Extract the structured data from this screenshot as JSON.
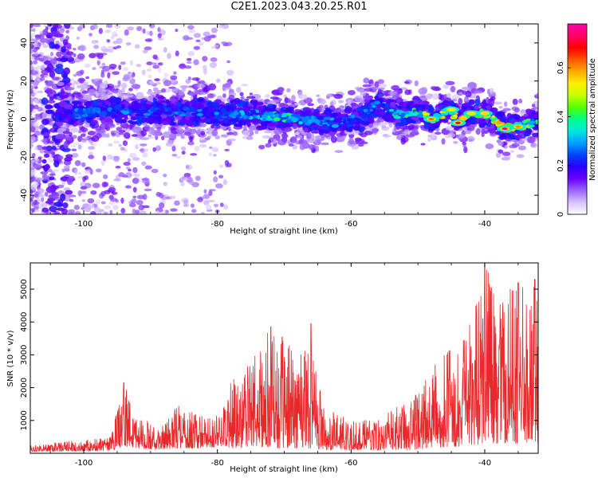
{
  "figure": {
    "title": "C2E1.2023.043.20.25.R01"
  },
  "chart_data": [
    {
      "type": "heatmap",
      "xlabel": "Height of straight line (km)",
      "ylabel": "Frequency (Hz)",
      "xlim": [
        -108,
        -32
      ],
      "ylim": [
        -50,
        50
      ],
      "xticks": [
        -100,
        -80,
        -60,
        -40
      ],
      "yticks": [
        -40,
        -20,
        0,
        20,
        40
      ],
      "colorbar": {
        "label": "Normalized spectral amplitude",
        "range": [
          0,
          0.78
        ],
        "ticks": [
          0,
          0.2,
          0.4,
          0.6
        ],
        "colormap": [
          "#ffffff",
          "#d6c2ff",
          "#9a66ff",
          "#6a00ff",
          "#2b00ff",
          "#0044ff",
          "#00a0ff",
          "#00e8e0",
          "#00ff88",
          "#55ff00",
          "#c8ff00",
          "#ffee00",
          "#ffaa00",
          "#ff5500",
          "#ff0000",
          "#ff0066",
          "#ff00aa"
        ]
      },
      "ridge": [
        {
          "x": -104,
          "f": 3,
          "a": 0.18
        },
        {
          "x": -101,
          "f": 3,
          "a": 0.3
        },
        {
          "x": -98,
          "f": 4,
          "a": 0.32
        },
        {
          "x": -95,
          "f": 5,
          "a": 0.3
        },
        {
          "x": -92,
          "f": 4,
          "a": 0.32
        },
        {
          "x": -89,
          "f": 4,
          "a": 0.28
        },
        {
          "x": -86,
          "f": 4,
          "a": 0.3
        },
        {
          "x": -83,
          "f": 4,
          "a": 0.3
        },
        {
          "x": -80,
          "f": 3,
          "a": 0.3
        },
        {
          "x": -77,
          "f": 3,
          "a": 0.32
        },
        {
          "x": -74,
          "f": 2,
          "a": 0.38
        },
        {
          "x": -71,
          "f": 1,
          "a": 0.42
        },
        {
          "x": -68,
          "f": 0,
          "a": 0.4
        },
        {
          "x": -65,
          "f": -1,
          "a": 0.36
        },
        {
          "x": -62,
          "f": -2,
          "a": 0.3
        },
        {
          "x": -59,
          "f": 0,
          "a": 0.3
        },
        {
          "x": -56,
          "f": 8,
          "a": 0.32
        },
        {
          "x": -53,
          "f": 2,
          "a": 0.42
        },
        {
          "x": -50,
          "f": 4,
          "a": 0.45
        },
        {
          "x": -48,
          "f": 0,
          "a": 0.62
        },
        {
          "x": -45,
          "f": 5,
          "a": 0.5
        },
        {
          "x": -44,
          "f": -2,
          "a": 0.7
        },
        {
          "x": -42,
          "f": 3,
          "a": 0.5
        },
        {
          "x": -40,
          "f": 3,
          "a": 0.55
        },
        {
          "x": -37,
          "f": -5,
          "a": 0.75
        },
        {
          "x": -35,
          "f": -4,
          "a": 0.6
        },
        {
          "x": -33,
          "f": -2,
          "a": 0.45
        }
      ]
    },
    {
      "type": "line",
      "xlabel": "Height of straight line (km)",
      "ylabel": "SNR (10 * v/v)",
      "xlim": [
        -108,
        -32
      ],
      "ylim": [
        0,
        5800
      ],
      "xticks": [
        -100,
        -80,
        -60,
        -40
      ],
      "yticks": [
        1000,
        2000,
        3000,
        4000,
        5000
      ],
      "color": "#e8282b",
      "envelope": [
        {
          "x": -108,
          "lo": 50,
          "hi": 250
        },
        {
          "x": -100,
          "lo": 60,
          "hi": 420
        },
        {
          "x": -96,
          "lo": 80,
          "hi": 500
        },
        {
          "x": -94,
          "lo": 200,
          "hi": 2150
        },
        {
          "x": -92,
          "lo": 150,
          "hi": 1300
        },
        {
          "x": -89,
          "lo": 100,
          "hi": 700
        },
        {
          "x": -86,
          "lo": 150,
          "hi": 1500
        },
        {
          "x": -83,
          "lo": 150,
          "hi": 1200
        },
        {
          "x": -80,
          "lo": 200,
          "hi": 1200
        },
        {
          "x": -78,
          "lo": 150,
          "hi": 2200
        },
        {
          "x": -75,
          "lo": 200,
          "hi": 2900
        },
        {
          "x": -72,
          "lo": 150,
          "hi": 3850
        },
        {
          "x": -69,
          "lo": 150,
          "hi": 3300
        },
        {
          "x": -66,
          "lo": 150,
          "hi": 3950
        },
        {
          "x": -64,
          "lo": 100,
          "hi": 1400
        },
        {
          "x": -61,
          "lo": 100,
          "hi": 1100
        },
        {
          "x": -57,
          "lo": 100,
          "hi": 1000
        },
        {
          "x": -54,
          "lo": 100,
          "hi": 1300
        },
        {
          "x": -51,
          "lo": 100,
          "hi": 1700
        },
        {
          "x": -48,
          "lo": 150,
          "hi": 2600
        },
        {
          "x": -45,
          "lo": 200,
          "hi": 3200
        },
        {
          "x": -43,
          "lo": 200,
          "hi": 3500
        },
        {
          "x": -40,
          "lo": 300,
          "hi": 5800
        },
        {
          "x": -38,
          "lo": 300,
          "hi": 4800
        },
        {
          "x": -35,
          "lo": 300,
          "hi": 5200
        },
        {
          "x": -32,
          "lo": 300,
          "hi": 5300
        }
      ],
      "peaks": [
        {
          "x": -94,
          "y": 2150
        },
        {
          "x": -72,
          "y": 3850
        },
        {
          "x": -66,
          "y": 3950
        },
        {
          "x": -40,
          "y": 5800
        },
        {
          "x": -35,
          "y": 5200
        },
        {
          "x": -32.5,
          "y": 5300
        }
      ]
    }
  ]
}
